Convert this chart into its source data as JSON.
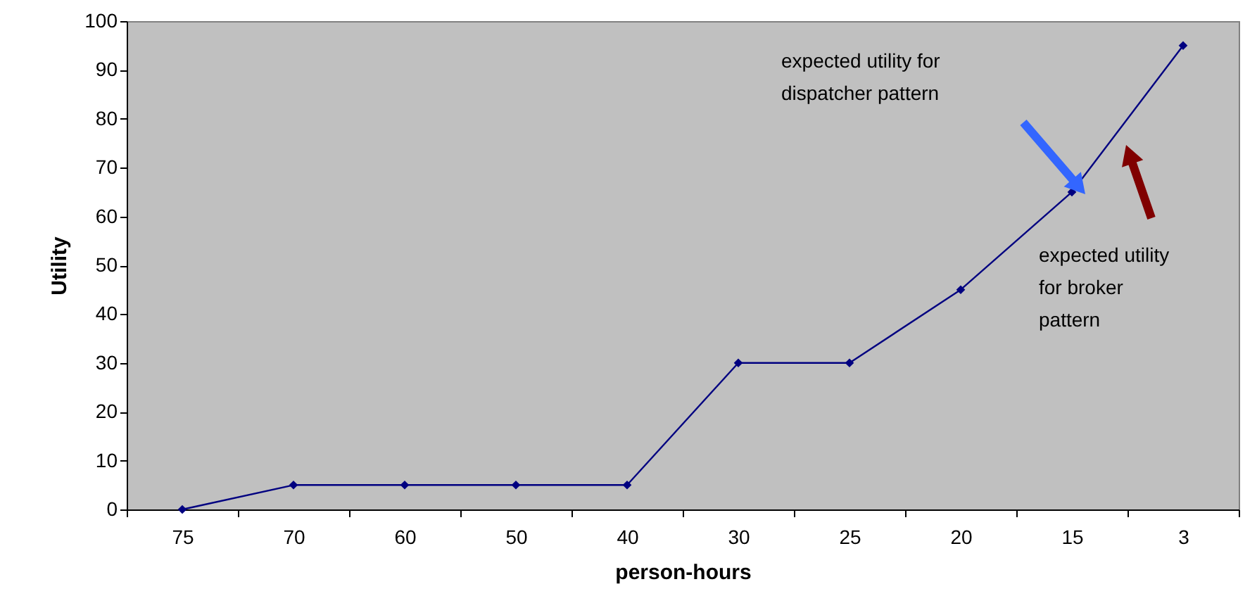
{
  "chart_data": {
    "type": "line",
    "xlabel": "person-hours",
    "ylabel": "Utility",
    "categories": [
      "75",
      "70",
      "60",
      "50",
      "40",
      "30",
      "25",
      "20",
      "15",
      "3"
    ],
    "series": [
      {
        "color": "#000080",
        "values": [
          0,
          5,
          5,
          5,
          5,
          30,
          30,
          45,
          65,
          95
        ]
      }
    ],
    "ylim": [
      0,
      100
    ],
    "yticks": [
      0,
      10,
      20,
      30,
      40,
      50,
      60,
      70,
      80,
      90,
      100
    ],
    "grid": false,
    "marker": "diamond",
    "line_style": "solid",
    "annotations": [
      "expected utility for dispatcher pattern",
      "expected utility for  broker pattern"
    ]
  }
}
